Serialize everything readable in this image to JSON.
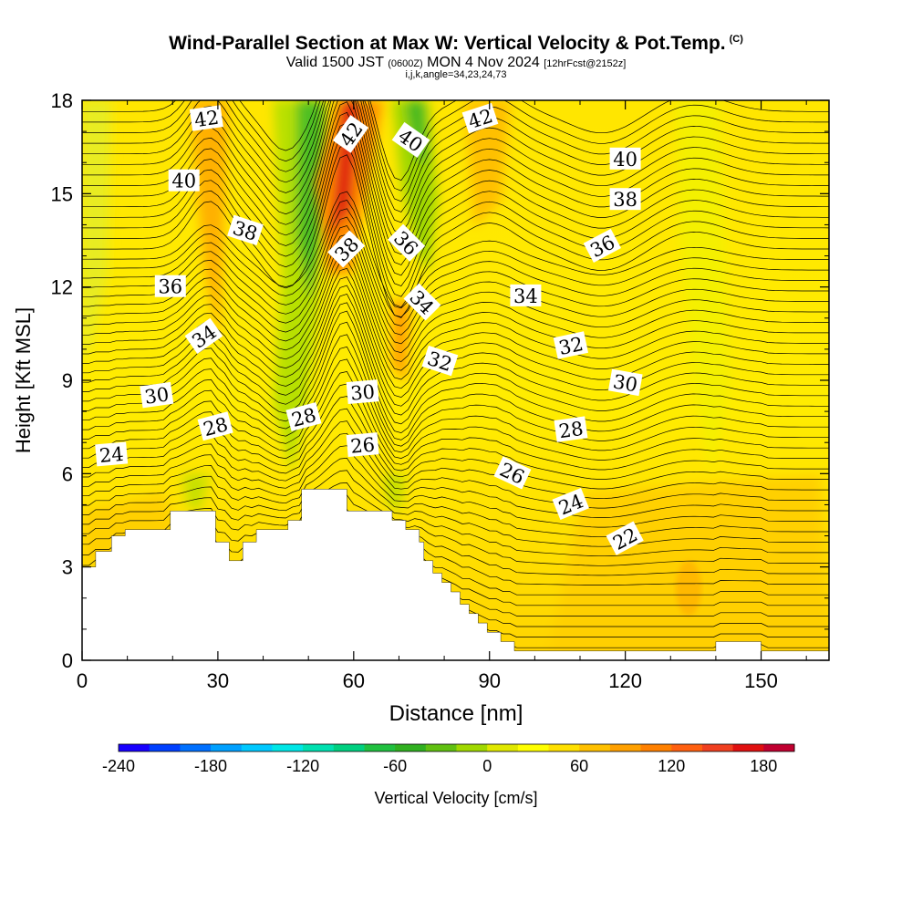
{
  "header": {
    "title": "Wind-Parallel Section at Max W: Vertical Velocity & Pot.Temp.",
    "copyright": "(C)",
    "valid_main": "Valid 1500 JST",
    "valid_z": "(0600Z)",
    "valid_date": "MON 4 Nov 2024",
    "valid_fcst": "[12hrFcst@2152z]",
    "ijk": "i,j,k,angle=34,23,24,73"
  },
  "chart_data": {
    "type": "heatmap",
    "xlabel": "Distance [nm]",
    "ylabel": "Height [Kft MSL]",
    "xlim": [
      0,
      165
    ],
    "ylim": [
      0,
      18
    ],
    "xticks": [
      0,
      30,
      60,
      90,
      120,
      150
    ],
    "yticks": [
      0,
      3,
      6,
      9,
      12,
      15,
      18
    ],
    "colorbar": {
      "label": "Vertical Velocity [cm/s]",
      "ticks": [
        -240,
        -180,
        -120,
        -60,
        0,
        60,
        120,
        180
      ],
      "min": -240,
      "max": 200,
      "step": 20,
      "colors": [
        "#1800ff",
        "#0040ff",
        "#0070ff",
        "#00a0ff",
        "#00c8ff",
        "#00e6e6",
        "#00e0b0",
        "#00d080",
        "#20c040",
        "#30b020",
        "#60c010",
        "#a0d800",
        "#e0e800",
        "#ffff00",
        "#ffe000",
        "#ffc000",
        "#ffa000",
        "#ff8000",
        "#ff6010",
        "#f04020",
        "#e01010",
        "#c00030",
        "#a00060",
        "#800080",
        "#600090"
      ]
    },
    "theta_contours_K": [
      22,
      24,
      26,
      28,
      30,
      32,
      34,
      36,
      38,
      40,
      42
    ],
    "contour_labels": [
      {
        "text": "42",
        "x": 27.5,
        "y": 17.4,
        "rot": -8
      },
      {
        "text": "42",
        "x": 59.5,
        "y": 16.9,
        "rot": -55
      },
      {
        "text": "40",
        "x": 72.5,
        "y": 16.7,
        "rot": 35
      },
      {
        "text": "42",
        "x": 88,
        "y": 17.4,
        "rot": -18
      },
      {
        "text": "40",
        "x": 120,
        "y": 16.1,
        "rot": 0
      },
      {
        "text": "40",
        "x": 22.5,
        "y": 15.4,
        "rot": 0
      },
      {
        "text": "38",
        "x": 120,
        "y": 14.8,
        "rot": 0
      },
      {
        "text": "38",
        "x": 36,
        "y": 13.8,
        "rot": 18
      },
      {
        "text": "38",
        "x": 58.5,
        "y": 13.2,
        "rot": -45
      },
      {
        "text": "36",
        "x": 71.5,
        "y": 13.4,
        "rot": 45
      },
      {
        "text": "36",
        "x": 115,
        "y": 13.3,
        "rot": -28
      },
      {
        "text": "36",
        "x": 19.5,
        "y": 12.0,
        "rot": 0
      },
      {
        "text": "34",
        "x": 98,
        "y": 11.7,
        "rot": 0
      },
      {
        "text": "34",
        "x": 75,
        "y": 11.5,
        "rot": 45
      },
      {
        "text": "34",
        "x": 27,
        "y": 10.4,
        "rot": -35
      },
      {
        "text": "32",
        "x": 108,
        "y": 10.1,
        "rot": -12
      },
      {
        "text": "32",
        "x": 79,
        "y": 9.6,
        "rot": 18
      },
      {
        "text": "30",
        "x": 120,
        "y": 8.9,
        "rot": 10
      },
      {
        "text": "30",
        "x": 16.5,
        "y": 8.5,
        "rot": -8
      },
      {
        "text": "30",
        "x": 62,
        "y": 8.6,
        "rot": -5
      },
      {
        "text": "28",
        "x": 49,
        "y": 7.8,
        "rot": -15
      },
      {
        "text": "28",
        "x": 29.5,
        "y": 7.5,
        "rot": -15
      },
      {
        "text": "28",
        "x": 108,
        "y": 7.4,
        "rot": -8
      },
      {
        "text": "26",
        "x": 62,
        "y": 6.9,
        "rot": -5
      },
      {
        "text": "26",
        "x": 95,
        "y": 6.0,
        "rot": 25
      },
      {
        "text": "24",
        "x": 6.5,
        "y": 6.6,
        "rot": -5
      },
      {
        "text": "24",
        "x": 108,
        "y": 5.0,
        "rot": -22
      },
      {
        "text": "22",
        "x": 120,
        "y": 3.9,
        "rot": -28
      }
    ],
    "terrain": [
      [
        0,
        3.0
      ],
      [
        3,
        3.0
      ],
      [
        3,
        3.5
      ],
      [
        6.5,
        3.5
      ],
      [
        6.5,
        4.0
      ],
      [
        9.5,
        4.0
      ],
      [
        9.5,
        4.2
      ],
      [
        19.5,
        4.2
      ],
      [
        19.5,
        4.8
      ],
      [
        29.5,
        4.8
      ],
      [
        29.5,
        3.8
      ],
      [
        32.5,
        3.8
      ],
      [
        32.5,
        3.2
      ],
      [
        35.5,
        3.2
      ],
      [
        35.5,
        3.8
      ],
      [
        38.5,
        3.8
      ],
      [
        38.5,
        4.2
      ],
      [
        45.5,
        4.2
      ],
      [
        45.5,
        4.5
      ],
      [
        48.5,
        4.5
      ],
      [
        48.5,
        5.5
      ],
      [
        58.5,
        5.5
      ],
      [
        58.5,
        4.8
      ],
      [
        68.5,
        4.8
      ],
      [
        68.5,
        4.5
      ],
      [
        71.5,
        4.5
      ],
      [
        71.5,
        4.2
      ],
      [
        74.5,
        4.2
      ],
      [
        74.5,
        3.8
      ],
      [
        75.5,
        3.8
      ],
      [
        75.5,
        3.2
      ],
      [
        77.5,
        3.2
      ],
      [
        77.5,
        2.8
      ],
      [
        79.5,
        2.8
      ],
      [
        79.5,
        2.5
      ],
      [
        81.5,
        2.5
      ],
      [
        81.5,
        2.2
      ],
      [
        83.5,
        2.2
      ],
      [
        83.5,
        1.8
      ],
      [
        85.5,
        1.8
      ],
      [
        85.5,
        1.5
      ],
      [
        87.5,
        1.5
      ],
      [
        87.5,
        1.2
      ],
      [
        89.5,
        1.2
      ],
      [
        89.5,
        0.9
      ],
      [
        92.5,
        0.9
      ],
      [
        92.5,
        0.6
      ],
      [
        95.5,
        0.6
      ],
      [
        95.5,
        0.3
      ],
      [
        140,
        0.3
      ],
      [
        140,
        0.6
      ],
      [
        150,
        0.6
      ],
      [
        150,
        0.3
      ],
      [
        165,
        0.3
      ],
      [
        165,
        0
      ],
      [
        0,
        0
      ]
    ]
  }
}
